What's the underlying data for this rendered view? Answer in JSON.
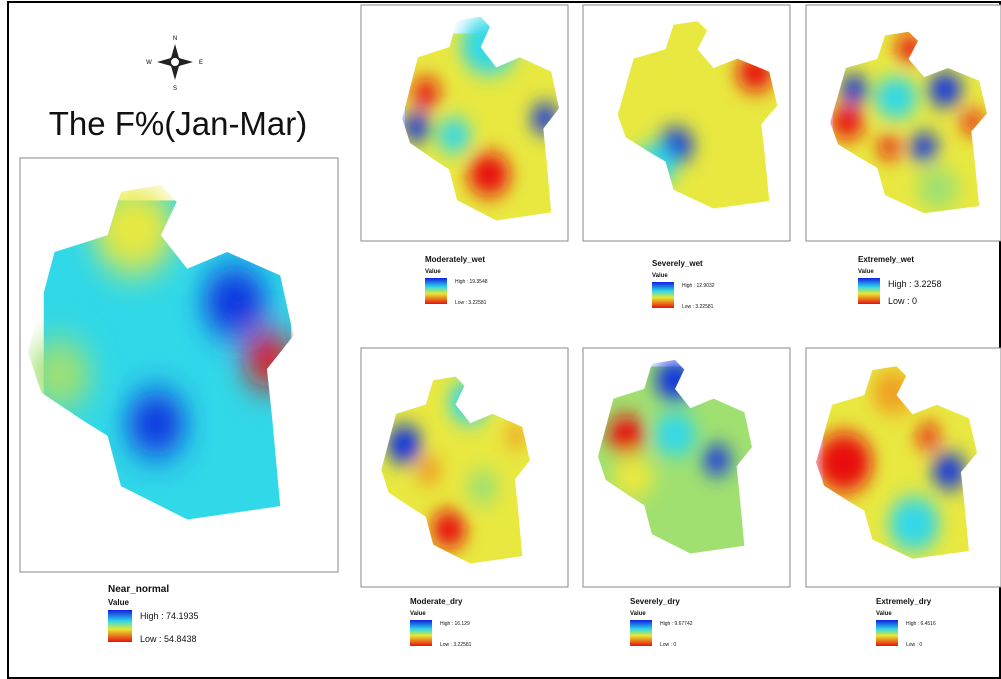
{
  "title": "The F%(Jan-Mar)",
  "compass": {
    "n": "N",
    "s": "S",
    "e": "E",
    "w": "W"
  },
  "panels": [
    {
      "name": "Near_normal",
      "legend_title": "Value",
      "high": "High : 74.1935",
      "low": "Low : 54.8438"
    },
    {
      "name": "Moderately_wet",
      "legend_title": "Value",
      "high": "High : 19.3548",
      "low": "Low : 3.22581"
    },
    {
      "name": "Severely_wet",
      "legend_title": "Value",
      "high": "High : 12.9032",
      "low": "Low : 3.22581"
    },
    {
      "name": "Extremely_wet",
      "legend_title": "Value",
      "high": "High : 3.2258",
      "low": "Low : 0"
    },
    {
      "name": "Moderate_dry",
      "legend_title": "Value",
      "high": "High : 16.129",
      "low": "Low : 3.22581"
    },
    {
      "name": "Severely_dry",
      "legend_title": "Value",
      "high": "High : 9.67742",
      "low": "Low : 0"
    },
    {
      "name": "Extremely_dry",
      "legend_title": "Value",
      "high": "High : 6.4516",
      "low": "Low : 0"
    }
  ]
}
